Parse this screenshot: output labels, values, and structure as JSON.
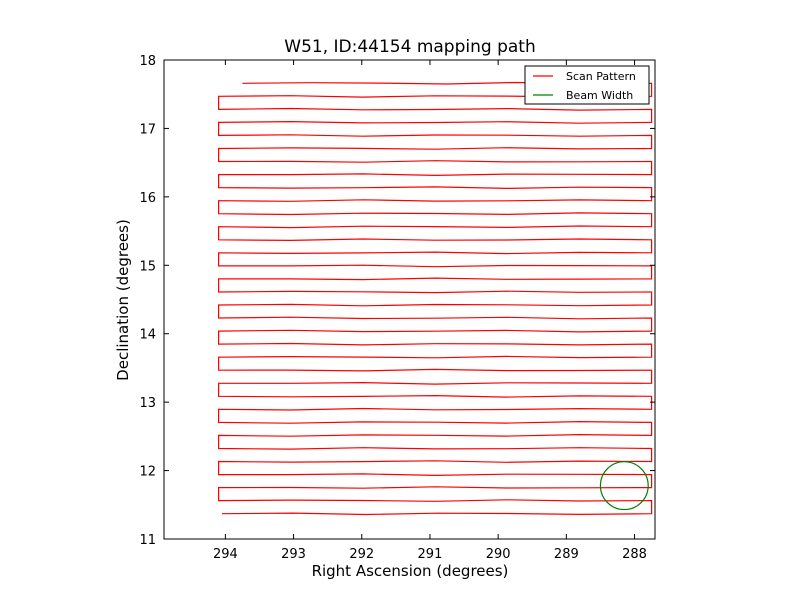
{
  "chart_data": {
    "type": "line",
    "title": "W51, ID:44154 mapping path",
    "xlabel": "Right Ascension (degrees)",
    "ylabel": "Declination (degrees)",
    "xlim": [
      294.9,
      287.7
    ],
    "ylim": [
      11,
      18
    ],
    "x_inverted": true,
    "xticks": [
      294,
      293,
      292,
      291,
      290,
      289,
      288
    ],
    "yticks": [
      11,
      12,
      13,
      14,
      15,
      16,
      17,
      18
    ],
    "grid": false,
    "legend_position": "top-right",
    "series": [
      {
        "name": "Scan Pattern",
        "color": "#ff0000",
        "kind": "raster",
        "ra_start": 294.1,
        "ra_end": 287.75,
        "dec_first": 11.37,
        "dec_last": 17.66,
        "num_rows": 34,
        "first_row_start_ra": 294.05,
        "last_row_end_ra": 293.75
      },
      {
        "name": "Beam Width",
        "color": "#008000",
        "kind": "circle",
        "center_ra": 288.15,
        "center_dec": 11.78,
        "radius_deg": 0.35
      }
    ]
  }
}
